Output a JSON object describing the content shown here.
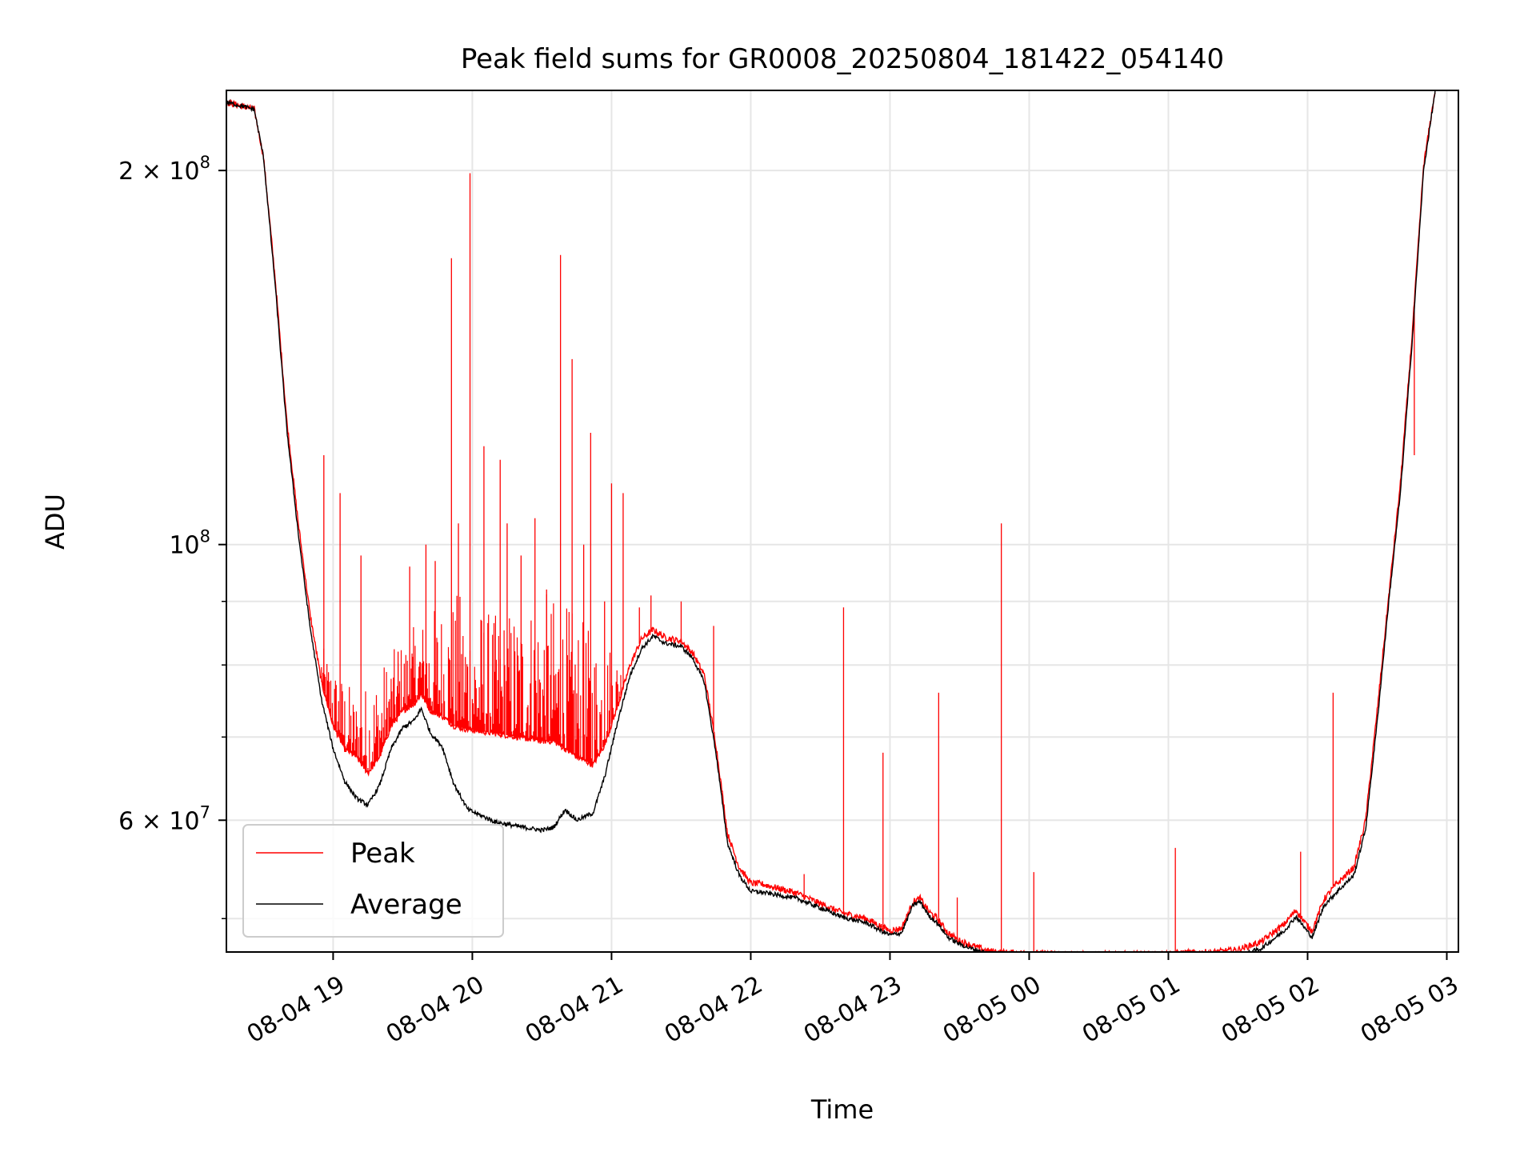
{
  "chart_data": {
    "type": "line",
    "title": "Peak field sums for GR0008_20250804_181422_054140",
    "xlabel": "Time",
    "ylabel": "ADU",
    "y_scale": "log",
    "grid": true,
    "legend_position": "lower-left",
    "x_range": [
      "2025-08-04 18:14",
      "2025-08-05 03:05"
    ],
    "y_range": [
      47000000,
      232000000
    ],
    "x_tick_labels": [
      {
        "t": "2025-08-04 19:00",
        "label": "08-04 19"
      },
      {
        "t": "2025-08-04 20:00",
        "label": "08-04 20"
      },
      {
        "t": "2025-08-04 21:00",
        "label": "08-04 21"
      },
      {
        "t": "2025-08-04 22:00",
        "label": "08-04 22"
      },
      {
        "t": "2025-08-04 23:00",
        "label": "08-04 23"
      },
      {
        "t": "2025-08-05 00:00",
        "label": "08-05 00"
      },
      {
        "t": "2025-08-05 01:00",
        "label": "08-05 01"
      },
      {
        "t": "2025-08-05 02:00",
        "label": "08-05 02"
      },
      {
        "t": "2025-08-05 03:00",
        "label": "08-05 03"
      }
    ],
    "y_tick_labels": [
      {
        "value": 200000000,
        "base": "2 × 10",
        "exp": "8"
      },
      {
        "value": 100000000,
        "base": "10",
        "exp": "8"
      },
      {
        "value": 60000000,
        "base": "6 × 10",
        "exp": "7"
      }
    ],
    "y_minor_ticks": [
      50000000,
      70000000,
      80000000,
      90000000
    ],
    "series": [
      {
        "name": "Average",
        "color": "#000000",
        "points": [
          [
            "2025-08-04 18:14",
            227000000
          ],
          [
            "2025-08-04 18:26",
            224000000
          ],
          [
            "2025-08-04 18:30",
            205000000
          ],
          [
            "2025-08-04 18:35",
            162000000
          ],
          [
            "2025-08-04 18:40",
            124000000
          ],
          [
            "2025-08-04 18:45",
            102000000
          ],
          [
            "2025-08-04 18:50",
            86000000
          ],
          [
            "2025-08-04 18:55",
            75000000
          ],
          [
            "2025-08-04 19:00",
            68500000
          ],
          [
            "2025-08-04 19:05",
            64500000
          ],
          [
            "2025-08-04 19:10",
            62500000
          ],
          [
            "2025-08-04 19:15",
            61700000
          ],
          [
            "2025-08-04 19:20",
            64000000
          ],
          [
            "2025-08-04 19:25",
            68500000
          ],
          [
            "2025-08-04 19:30",
            71200000
          ],
          [
            "2025-08-04 19:35",
            72200000
          ],
          [
            "2025-08-04 19:38",
            73800000
          ],
          [
            "2025-08-04 19:42",
            70500000
          ],
          [
            "2025-08-04 19:47",
            68800000
          ],
          [
            "2025-08-04 19:52",
            64200000
          ],
          [
            "2025-08-04 19:58",
            61200000
          ],
          [
            "2025-08-04 20:10",
            59800000
          ],
          [
            "2025-08-04 20:20",
            59300000
          ],
          [
            "2025-08-04 20:30",
            58900000
          ],
          [
            "2025-08-04 20:35",
            59200000
          ],
          [
            "2025-08-04 20:40",
            61200000
          ],
          [
            "2025-08-04 20:45",
            60000000
          ],
          [
            "2025-08-04 20:52",
            60800000
          ],
          [
            "2025-08-04 20:57",
            65000000
          ],
          [
            "2025-08-04 21:03",
            72500000
          ],
          [
            "2025-08-04 21:08",
            78500000
          ],
          [
            "2025-08-04 21:13",
            82500000
          ],
          [
            "2025-08-04 21:18",
            84400000
          ],
          [
            "2025-08-04 21:23",
            83300000
          ],
          [
            "2025-08-04 21:30",
            82800000
          ],
          [
            "2025-08-04 21:35",
            81000000
          ],
          [
            "2025-08-04 21:40",
            77500000
          ],
          [
            "2025-08-04 21:45",
            68000000
          ],
          [
            "2025-08-04 21:50",
            57500000
          ],
          [
            "2025-08-04 21:55",
            54200000
          ],
          [
            "2025-08-04 22:00",
            52600000
          ],
          [
            "2025-08-04 22:05",
            52500000
          ],
          [
            "2025-08-04 22:10",
            52300000
          ],
          [
            "2025-08-04 22:20",
            51900000
          ],
          [
            "2025-08-04 22:30",
            51000000
          ],
          [
            "2025-08-04 22:40",
            50100000
          ],
          [
            "2025-08-04 22:50",
            49600000
          ],
          [
            "2025-08-04 22:55",
            49000000
          ],
          [
            "2025-08-04 23:00",
            48500000
          ],
          [
            "2025-08-04 23:05",
            48700000
          ],
          [
            "2025-08-04 23:10",
            51300000
          ],
          [
            "2025-08-04 23:13",
            51600000
          ],
          [
            "2025-08-04 23:17",
            50200000
          ],
          [
            "2025-08-04 23:20",
            49700000
          ],
          [
            "2025-08-04 23:25",
            48300000
          ],
          [
            "2025-08-04 23:30",
            47700000
          ],
          [
            "2025-08-04 23:35",
            47300000
          ],
          [
            "2025-08-04 23:42",
            46900000
          ],
          [
            "2025-08-04 23:50",
            46750000
          ],
          [
            "2025-08-05 00:00",
            46650000
          ],
          [
            "2025-08-05 00:20",
            46550000
          ],
          [
            "2025-08-05 00:40",
            46500000
          ],
          [
            "2025-08-05 01:00",
            46500000
          ],
          [
            "2025-08-05 01:20",
            46550000
          ],
          [
            "2025-08-05 01:30",
            46650000
          ],
          [
            "2025-08-05 01:40",
            47300000
          ],
          [
            "2025-08-05 01:50",
            48900000
          ],
          [
            "2025-08-05 01:55",
            50200000
          ],
          [
            "2025-08-05 02:00",
            48800000
          ],
          [
            "2025-08-05 02:02",
            48300000
          ],
          [
            "2025-08-05 02:07",
            51200000
          ],
          [
            "2025-08-05 02:12",
            52400000
          ],
          [
            "2025-08-05 02:20",
            54200000
          ],
          [
            "2025-08-05 02:25",
            59000000
          ],
          [
            "2025-08-05 02:30",
            72000000
          ],
          [
            "2025-08-05 02:35",
            90000000
          ],
          [
            "2025-08-05 02:40",
            110000000
          ],
          [
            "2025-08-05 02:45",
            145000000
          ],
          [
            "2025-08-05 02:50",
            200000000
          ],
          [
            "2025-08-05 02:55",
            232000000
          ]
        ]
      },
      {
        "name": "Peak",
        "color": "#ff0000",
        "points": [
          [
            "2025-08-04 18:14",
            227000000
          ],
          [
            "2025-08-04 18:26",
            224000000
          ],
          [
            "2025-08-04 18:30",
            205000000
          ],
          [
            "2025-08-04 18:35",
            164000000
          ],
          [
            "2025-08-04 18:40",
            126000000
          ],
          [
            "2025-08-04 18:45",
            104000000
          ],
          [
            "2025-08-04 18:50",
            88000000
          ],
          [
            "2025-08-04 18:55",
            77500000
          ],
          [
            "2025-08-04 19:00",
            71500000
          ],
          [
            "2025-08-04 19:05",
            68500000
          ],
          [
            "2025-08-04 19:10",
            67500000
          ],
          [
            "2025-08-04 19:15",
            65500000
          ],
          [
            "2025-08-04 19:20",
            67500000
          ],
          [
            "2025-08-04 19:25",
            71500000
          ],
          [
            "2025-08-04 19:30",
            73500000
          ],
          [
            "2025-08-04 19:35",
            74500000
          ],
          [
            "2025-08-04 19:38",
            75800000
          ],
          [
            "2025-08-04 19:42",
            73500000
          ],
          [
            "2025-08-04 19:47",
            72800000
          ],
          [
            "2025-08-04 19:52",
            71500000
          ],
          [
            "2025-08-04 19:58",
            71000000
          ],
          [
            "2025-08-04 20:10",
            70500000
          ],
          [
            "2025-08-04 20:20",
            70000000
          ],
          [
            "2025-08-04 20:30",
            69500000
          ],
          [
            "2025-08-04 20:35",
            69500000
          ],
          [
            "2025-08-04 20:40",
            68500000
          ],
          [
            "2025-08-04 20:45",
            67500000
          ],
          [
            "2025-08-04 20:52",
            66500000
          ],
          [
            "2025-08-04 20:57",
            69000000
          ],
          [
            "2025-08-04 21:03",
            74500000
          ],
          [
            "2025-08-04 21:08",
            80000000
          ],
          [
            "2025-08-04 21:13",
            84000000
          ],
          [
            "2025-08-04 21:18",
            85400000
          ],
          [
            "2025-08-04 21:23",
            84200000
          ],
          [
            "2025-08-04 21:30",
            83600000
          ],
          [
            "2025-08-04 21:35",
            81800000
          ],
          [
            "2025-08-04 21:40",
            78500000
          ],
          [
            "2025-08-04 21:45",
            69000000
          ],
          [
            "2025-08-04 21:50",
            58500000
          ],
          [
            "2025-08-04 21:55",
            55000000
          ],
          [
            "2025-08-04 22:00",
            53400000
          ],
          [
            "2025-08-04 22:05",
            53300000
          ],
          [
            "2025-08-04 22:10",
            53000000
          ],
          [
            "2025-08-04 22:20",
            52400000
          ],
          [
            "2025-08-04 22:30",
            51400000
          ],
          [
            "2025-08-04 22:40",
            50500000
          ],
          [
            "2025-08-04 22:50",
            50000000
          ],
          [
            "2025-08-04 22:55",
            49400000
          ],
          [
            "2025-08-04 23:00",
            48900000
          ],
          [
            "2025-08-04 23:05",
            49100000
          ],
          [
            "2025-08-04 23:10",
            51600000
          ],
          [
            "2025-08-04 23:13",
            51900000
          ],
          [
            "2025-08-04 23:17",
            50600000
          ],
          [
            "2025-08-04 23:20",
            50100000
          ],
          [
            "2025-08-04 23:25",
            48700000
          ],
          [
            "2025-08-04 23:30",
            48000000
          ],
          [
            "2025-08-04 23:35",
            47600000
          ],
          [
            "2025-08-04 23:42",
            47100000
          ],
          [
            "2025-08-04 23:50",
            46950000
          ],
          [
            "2025-08-05 00:00",
            46900000
          ],
          [
            "2025-08-05 00:20",
            46800000
          ],
          [
            "2025-08-05 00:40",
            46800000
          ],
          [
            "2025-08-05 01:00",
            46900000
          ],
          [
            "2025-08-05 01:20",
            47000000
          ],
          [
            "2025-08-05 01:30",
            47200000
          ],
          [
            "2025-08-05 01:40",
            47900000
          ],
          [
            "2025-08-05 01:50",
            49500000
          ],
          [
            "2025-08-05 01:55",
            50800000
          ],
          [
            "2025-08-05 02:00",
            49300000
          ],
          [
            "2025-08-05 02:02",
            48900000
          ],
          [
            "2025-08-05 02:07",
            51800000
          ],
          [
            "2025-08-05 02:12",
            53200000
          ],
          [
            "2025-08-05 02:20",
            55000000
          ],
          [
            "2025-08-05 02:25",
            60000000
          ],
          [
            "2025-08-05 02:30",
            73500000
          ],
          [
            "2025-08-05 02:35",
            91000000
          ],
          [
            "2025-08-05 02:40",
            112000000
          ],
          [
            "2025-08-05 02:45",
            147000000
          ],
          [
            "2025-08-05 02:50",
            202000000
          ],
          [
            "2025-08-05 02:55",
            232000000
          ]
        ],
        "spikes": [
          [
            "2025-08-04 18:56",
            118000000
          ],
          [
            "2025-08-04 19:03",
            110000000
          ],
          [
            "2025-08-04 19:12",
            98000000
          ],
          [
            "2025-08-04 19:28",
            82000000
          ],
          [
            "2025-08-04 19:33",
            96000000
          ],
          [
            "2025-08-04 19:40",
            100000000
          ],
          [
            "2025-08-04 19:44",
            97000000
          ],
          [
            "2025-08-04 19:51",
            170000000
          ],
          [
            "2025-08-04 19:54",
            104000000
          ],
          [
            "2025-08-04 19:59",
            199000000
          ],
          [
            "2025-08-04 20:05",
            120000000
          ],
          [
            "2025-08-04 20:12",
            117000000
          ],
          [
            "2025-08-04 20:15",
            104000000
          ],
          [
            "2025-08-04 20:21",
            98000000
          ],
          [
            "2025-08-04 20:27",
            105000000
          ],
          [
            "2025-08-04 20:32",
            92000000
          ],
          [
            "2025-08-04 20:38",
            171000000
          ],
          [
            "2025-08-04 20:43",
            141000000
          ],
          [
            "2025-08-04 20:48",
            100000000
          ],
          [
            "2025-08-04 20:51",
            123000000
          ],
          [
            "2025-08-04 20:57",
            90000000
          ],
          [
            "2025-08-04 21:00",
            112000000
          ],
          [
            "2025-08-04 21:05",
            110000000
          ],
          [
            "2025-08-04 21:12",
            89000000
          ],
          [
            "2025-08-04 21:17",
            91000000
          ],
          [
            "2025-08-04 21:30",
            90000000
          ],
          [
            "2025-08-04 21:44",
            86000000
          ],
          [
            "2025-08-04 22:23",
            54300000
          ],
          [
            "2025-08-04 22:40",
            89000000
          ],
          [
            "2025-08-04 22:57",
            68000000
          ],
          [
            "2025-08-04 23:21",
            76000000
          ],
          [
            "2025-08-04 23:29",
            52000000
          ],
          [
            "2025-08-04 23:48",
            104000000
          ],
          [
            "2025-08-05 00:02",
            54500000
          ],
          [
            "2025-08-05 01:03",
            57000000
          ],
          [
            "2025-08-05 01:57",
            56600000
          ],
          [
            "2025-08-05 02:11",
            76000000
          ],
          [
            "2025-08-05 02:46",
            118000000
          ]
        ],
        "noise_band": [
          [
            "2025-08-04 18:55",
            83000000
          ],
          [
            "2025-08-04 19:10",
            76000000
          ],
          [
            "2025-08-04 19:20",
            80000000
          ],
          [
            "2025-08-04 19:35",
            86000000
          ],
          [
            "2025-08-04 19:45",
            90000000
          ],
          [
            "2025-08-04 19:55",
            92000000
          ],
          [
            "2025-08-04 20:10",
            88000000
          ],
          [
            "2025-08-04 20:20",
            90000000
          ],
          [
            "2025-08-04 20:30",
            92000000
          ],
          [
            "2025-08-04 20:40",
            90000000
          ],
          [
            "2025-08-04 20:50",
            86000000
          ],
          [
            "2025-08-04 21:00",
            84000000
          ],
          [
            "2025-08-04 21:05",
            80000000
          ]
        ]
      }
    ]
  }
}
